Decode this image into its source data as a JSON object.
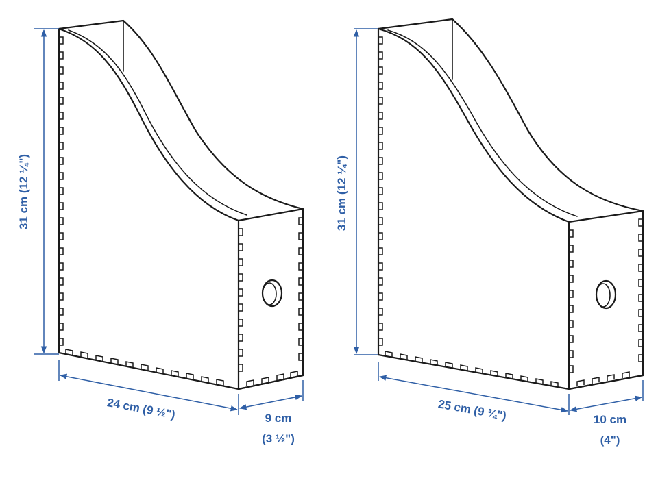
{
  "colors": {
    "dimension": "#2f5fa6",
    "outline": "#1a1a1a",
    "background": "#ffffff"
  },
  "left_holder": {
    "height_label": "31 cm (12 ¼\")",
    "length_label": "24 cm (9 ½\")",
    "width_label_line1": "9 cm",
    "width_label_line2": "(3 ½\")"
  },
  "right_holder": {
    "height_label": "31 cm (12 ¼\")",
    "length_label": "25 cm (9 ¾\")",
    "width_label_line1": "10 cm",
    "width_label_line2": "(4\")"
  }
}
